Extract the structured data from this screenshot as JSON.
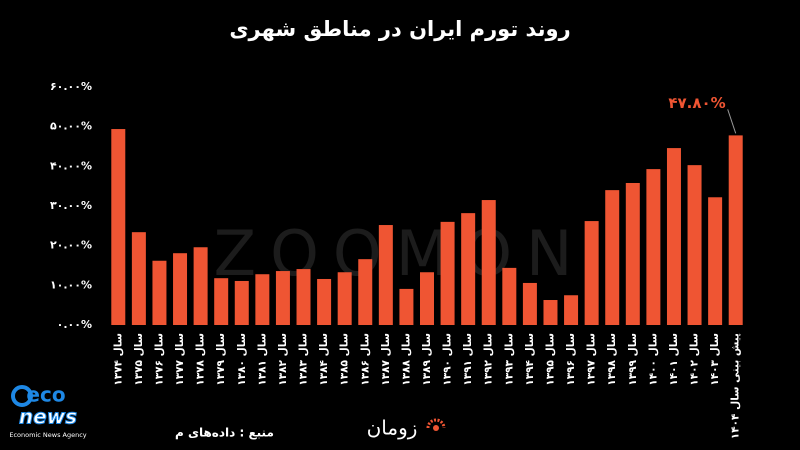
{
  "chart_data": {
    "type": "bar",
    "title": "روند تورم ایران در مناطق شهری",
    "categories": [
      "سال ۱۳۷۴",
      "سال ۱۳۷۵",
      "سال ۱۳۷۶",
      "سال ۱۳۷۷",
      "سال ۱۳۷۸",
      "سال ۱۳۷۹",
      "سال ۱۳۸۰",
      "سال ۱۳۸۱",
      "سال ۱۳۸۲",
      "سال ۱۳۸۳",
      "سال ۱۳۸۴",
      "سال ۱۳۸۵",
      "سال ۱۳۸۶",
      "سال ۱۳۸۷",
      "سال ۱۳۸۸",
      "سال ۱۳۸۹",
      "سال ۱۳۹۰",
      "سال ۱۳۹۱",
      "سال ۱۳۹۲",
      "سال ۱۳۹۳",
      "سال ۱۳۹۴",
      "سال ۱۳۹۵",
      "سال ۱۳۹۶",
      "سال ۱۳۹۷",
      "سال ۱۳۹۸",
      "سال ۱۳۹۹",
      "سال ۱۴۰۰",
      "سال ۱۴۰۱",
      "سال ۱۴۰۲",
      "سال ۱۴۰۳",
      "پیش بینی سال ۱۴۰۴"
    ],
    "values": [
      49.4,
      23.4,
      16.2,
      18.1,
      19.6,
      11.8,
      11.1,
      12.8,
      13.6,
      14.1,
      11.6,
      13.3,
      16.6,
      25.2,
      9.1,
      13.3,
      26,
      28.2,
      31.5,
      14.4,
      10.6,
      6.3,
      7.5,
      26.2,
      34,
      35.8,
      39.3,
      44.6,
      40.3,
      32.2,
      47.8
    ],
    "value_labels": [
      null,
      null,
      null,
      null,
      null,
      null,
      null,
      null,
      null,
      null,
      null,
      null,
      null,
      null,
      null,
      null,
      null,
      null,
      null,
      null,
      null,
      null,
      null,
      null,
      null,
      null,
      null,
      null,
      null,
      null,
      "۴۷.۸۰%"
    ],
    "color": "#ef5533",
    "ylim": [
      0,
      60
    ],
    "yticks": [
      {
        "value": 0,
        "label": "۰.۰۰%"
      },
      {
        "value": 10,
        "label": "۱۰.۰۰%"
      },
      {
        "value": 20,
        "label": "۲۰.۰۰%"
      },
      {
        "value": 30,
        "label": "۳۰.۰۰%"
      },
      {
        "value": 40,
        "label": "۴۰.۰۰%"
      },
      {
        "value": 50,
        "label": "۵۰.۰۰%"
      },
      {
        "value": 60,
        "label": "۶۰.۰۰%"
      }
    ],
    "grid": false
  },
  "watermark": "ZOOMON",
  "source": "منبع : داده‌های م",
  "brand": "زومان",
  "logo": {
    "top": "eco",
    "bottom": "news",
    "caption": "Economic News Agency"
  }
}
